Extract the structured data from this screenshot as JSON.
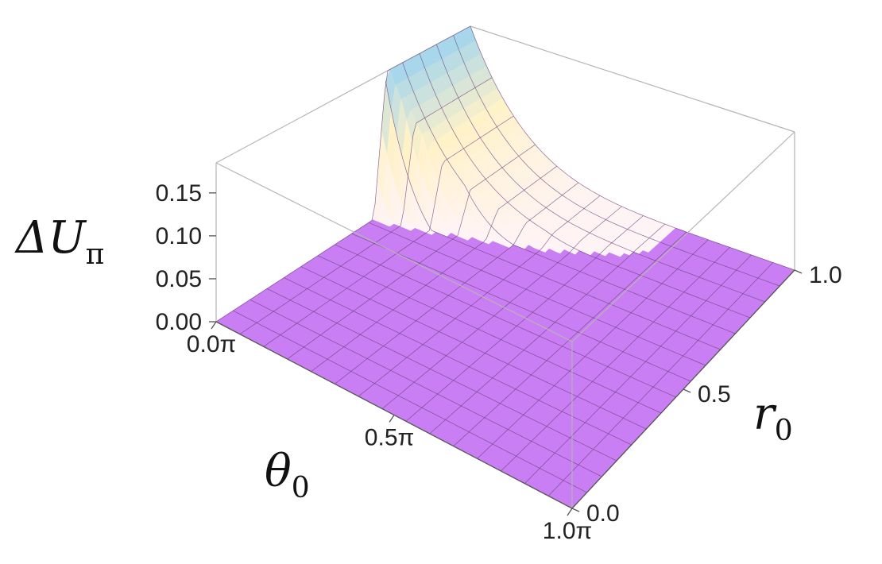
{
  "chart_data": {
    "type": "surface3d",
    "title": "",
    "x_axis": {
      "label_main": "θ",
      "label_sub": "0",
      "ticks": [
        {
          "value": 0.0,
          "label": "0.0π"
        },
        {
          "value": 0.5,
          "label": "0.5π"
        },
        {
          "value": 1.0,
          "label": "1.0π"
        }
      ],
      "range": [
        0,
        1
      ]
    },
    "y_axis": {
      "label_main": "r",
      "label_sub": "0",
      "ticks": [
        {
          "value": 0.0,
          "label": "0.0"
        },
        {
          "value": 0.5,
          "label": "0.5"
        },
        {
          "value": 1.0,
          "label": "1.0"
        }
      ],
      "range": [
        0,
        1
      ]
    },
    "z_axis": {
      "label_main": "ΔU",
      "label_sub": "π",
      "ticks": [
        {
          "value": 0.0,
          "label": "0.00"
        },
        {
          "value": 0.05,
          "label": "0.05"
        },
        {
          "value": 0.1,
          "label": "0.10"
        },
        {
          "value": 0.15,
          "label": "0.15"
        }
      ],
      "range": [
        0,
        0.185
      ]
    },
    "surface": {
      "description_function": "zero everywhere except a ridge along r0 ≈ 0.62 + 0.34·θ0 that rises steeply toward θ0 → 0, r0 → 1",
      "grid_lines": 15,
      "colors": {
        "base": "#c97ef3",
        "grid": "#6a3d7a",
        "ridge_light": "#fff4f6",
        "ridge_warm": "#fff2c8",
        "ridge_peak": "#9fd3ee"
      }
    }
  }
}
